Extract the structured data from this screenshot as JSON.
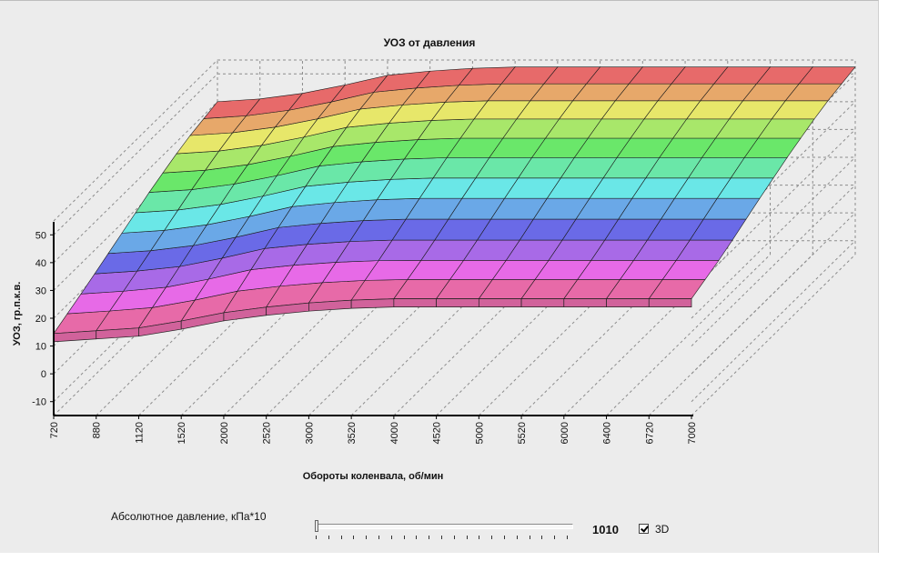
{
  "chart_data": {
    "type": "surface",
    "title": "УОЗ от давления",
    "xlabel": "Обороты коленвала, об/мин",
    "ylabel": "УОЗ, гр.п.к.в.",
    "x_ticks": [
      "720",
      "880",
      "1120",
      "1520",
      "2000",
      "2520",
      "3000",
      "3520",
      "4000",
      "4520",
      "5000",
      "5520",
      "6000",
      "6400",
      "6720",
      "7000"
    ],
    "y_ticks": [
      "50",
      "40",
      "30",
      "20",
      "10",
      "0",
      "-10"
    ],
    "ylim": [
      -15,
      55
    ],
    "grid": true,
    "surface_series": [
      {
        "name": "",
        "values": [
          14.5,
          15.5,
          16.5,
          19,
          22,
          24,
          25.5,
          26.5,
          27,
          27,
          27,
          27,
          27,
          27,
          27,
          27
        ]
      },
      {
        "name": "",
        "values": [
          20,
          21,
          22.5,
          25.5,
          29,
          30.5,
          31.5,
          32,
          32,
          32,
          32,
          32,
          32,
          32,
          32,
          32
        ]
      },
      {
        "name": "",
        "values": [
          26,
          27,
          29,
          32,
          35.5,
          37,
          38,
          38.5,
          38.5,
          38.5,
          38.5,
          38.5,
          38.5,
          38.5,
          38.5,
          38.5
        ]
      },
      {
        "name": "",
        "values": [
          32,
          33,
          35,
          38,
          41.5,
          43,
          44,
          44.5,
          44.5,
          44.5,
          44.5,
          44.5,
          44.5,
          44.5,
          44.5,
          44.5
        ]
      },
      {
        "name": "",
        "values": [
          37,
          38,
          40,
          43,
          46.5,
          48,
          49,
          49.5,
          49.5,
          49.5,
          49.5,
          49.5,
          49.5,
          49.5,
          49.5,
          49.5
        ]
      },
      {
        "name": "",
        "values": [
          40,
          41,
          43,
          46,
          49.5,
          51,
          52,
          52.5,
          52.5,
          52.5,
          52.5,
          52.5,
          52.5,
          52.5,
          52.5,
          52.5
        ]
      }
    ]
  },
  "controls": {
    "pressure_label": "Абсолютное давление, кПа*10",
    "pressure_value": "1010",
    "slider_position": 0.0,
    "checkbox_3d_label": "3D",
    "checkbox_3d_checked": true
  }
}
